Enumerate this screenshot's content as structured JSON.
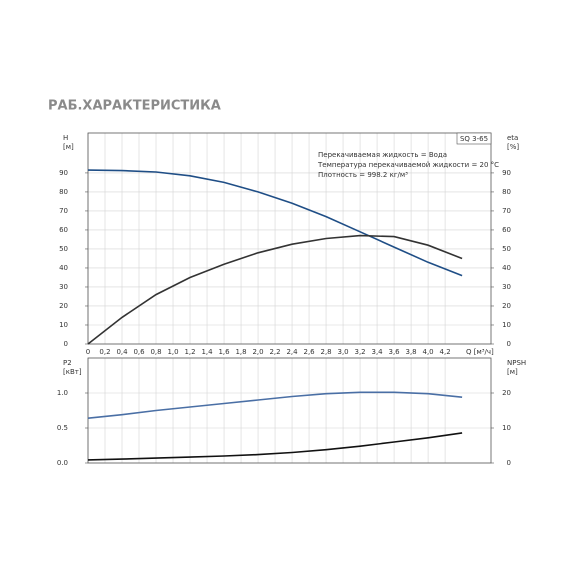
{
  "chart_data": [
    {
      "type": "line",
      "title": "РАБ.ХАРАКТЕРИСТИКА",
      "model": "SQ 3-65",
      "notes": [
        "Перекачиваемая жидкость = Вода",
        "Температура перекачиваемой жидкости = 20 °C",
        "Плотность = 998.2 кг/м³"
      ],
      "y_label": "H",
      "y_unit": "[м]",
      "y2_label": "eta",
      "y2_unit": "[%]",
      "x_label": "Q [м³/ч]",
      "x": [
        0,
        0.4,
        0.8,
        1.2,
        1.6,
        2.0,
        2.4,
        2.8,
        3.2,
        3.6,
        4.0,
        4.4
      ],
      "series": [
        {
          "color": "#1f4e86",
          "values": [
            91.5,
            91.2,
            90.5,
            88.5,
            85,
            80,
            74,
            67,
            59,
            51,
            43,
            36
          ]
        },
        {
          "color": "#333333",
          "axis": "y2",
          "values": [
            0,
            14,
            26,
            35,
            42,
            48,
            52.5,
            55.5,
            57,
            56.5,
            52,
            45
          ]
        }
      ],
      "xlim": [
        0,
        4.74
      ],
      "ylim": [
        0,
        111
      ],
      "y2lim": [
        0,
        111
      ],
      "xticks": [
        0,
        {
          "value": 0.2,
          "label": "0,2"
        },
        {
          "value": 0.4,
          "label": "0,4"
        },
        {
          "value": 0.6,
          "label": "0,6"
        },
        {
          "value": 0.8,
          "label": "0,8"
        },
        {
          "value": 1.0,
          "label": "1,0"
        },
        {
          "value": 1.2,
          "label": "1,2"
        },
        {
          "value": 1.4,
          "label": "1,4"
        },
        {
          "value": 1.6,
          "label": "1,6"
        },
        {
          "value": 1.8,
          "label": "1,8"
        },
        {
          "value": 2.0,
          "label": "2,0"
        },
        {
          "value": 2.2,
          "label": "2,2"
        },
        {
          "value": 2.4,
          "label": "2,4"
        },
        {
          "value": 2.6,
          "label": "2,6"
        },
        {
          "value": 2.8,
          "label": "2,8"
        },
        {
          "value": 3.0,
          "label": "3,0"
        },
        {
          "value": 3.2,
          "label": "3,2"
        },
        {
          "value": 3.4,
          "label": "3,4"
        },
        {
          "value": 3.6,
          "label": "3,6"
        },
        {
          "value": 3.8,
          "label": "3,8"
        },
        {
          "value": 4.0,
          "label": "4,0"
        },
        {
          "value": 4.2,
          "label": "4,2"
        }
      ],
      "yticks": [
        0,
        10,
        20,
        30,
        40,
        50,
        60,
        70,
        80,
        90
      ],
      "y2ticks": [
        0,
        10,
        20,
        30,
        40,
        50,
        60,
        70,
        80,
        90
      ],
      "grid": true
    },
    {
      "type": "line",
      "y_label": "P2",
      "y_unit": "[кВт]",
      "y2_label": "NPSH",
      "y2_unit": "[м]",
      "x": [
        0,
        0.4,
        0.8,
        1.2,
        1.6,
        2.0,
        2.4,
        2.8,
        3.2,
        3.6,
        4.0,
        4.4
      ],
      "series": [
        {
          "color": "#4a6fa5",
          "values": [
            0.64,
            0.69,
            0.75,
            0.8,
            0.85,
            0.9,
            0.95,
            0.99,
            1.01,
            1.01,
            0.99,
            0.94
          ]
        },
        {
          "color": "#111111",
          "axis": "y2",
          "values": [
            0.9,
            1.1,
            1.4,
            1.7,
            2.0,
            2.4,
            3.0,
            3.8,
            4.8,
            6.0,
            7.2,
            8.6
          ]
        }
      ],
      "xlim": [
        0,
        4.74
      ],
      "ylim": [
        0,
        1.5
      ],
      "y2lim": [
        0,
        30
      ],
      "yticks": [
        {
          "value": 0,
          "label": "0.0"
        },
        {
          "value": 0.5,
          "label": "0.5"
        },
        {
          "value": 1.0,
          "label": "1.0"
        }
      ],
      "y2ticks": [
        0,
        10,
        20
      ],
      "grid": true
    }
  ]
}
